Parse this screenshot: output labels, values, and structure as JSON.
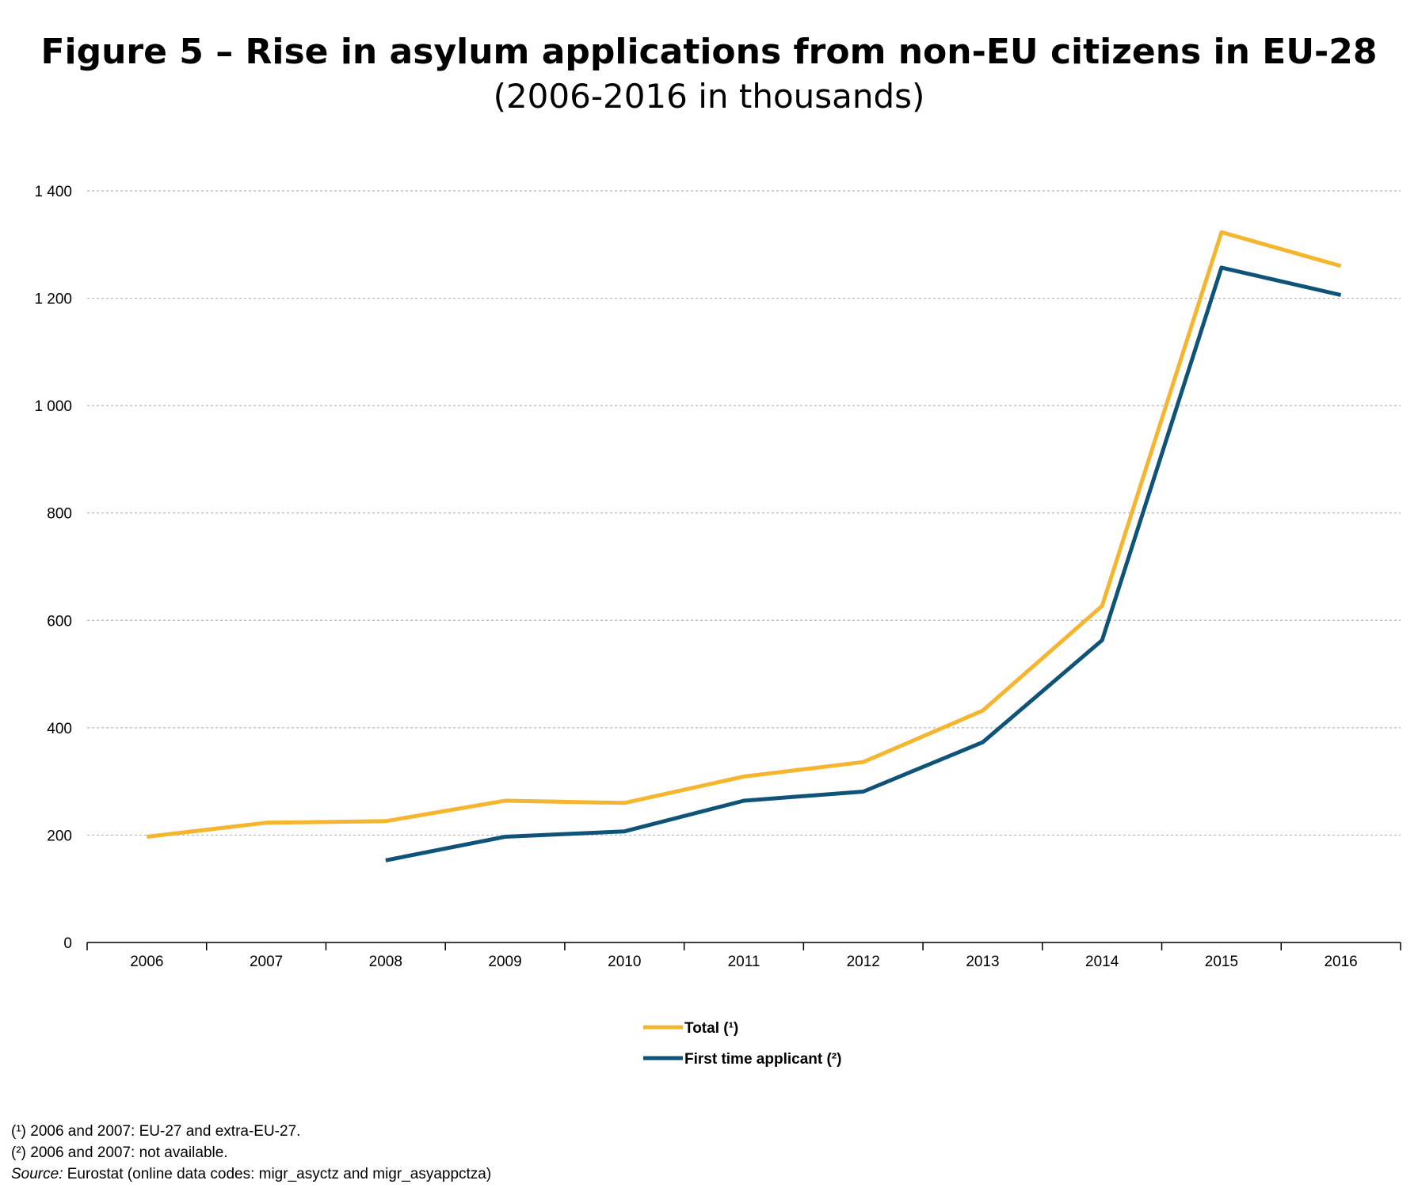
{
  "header": {
    "title": "Figure 5 – Rise in asylum applications from non-EU citizens in EU-28",
    "subtitle": "(2006-2016 in thousands)"
  },
  "chart_data": {
    "type": "line",
    "x": [
      "2006",
      "2007",
      "2008",
      "2009",
      "2010",
      "2011",
      "2012",
      "2013",
      "2014",
      "2015",
      "2016"
    ],
    "y_ticks": [
      0,
      200,
      400,
      600,
      800,
      1000,
      1200,
      1400
    ],
    "y_tick_labels": [
      "0",
      "200",
      "400",
      "600",
      "800",
      "1 000",
      "1 200",
      "1 400"
    ],
    "ylim": [
      0,
      1400
    ],
    "grid": true,
    "legend_position": "bottom-center",
    "series": [
      {
        "name": "Total (¹)",
        "color": "#F6B52E",
        "values": [
          197,
          223,
          226,
          264,
          260,
          309,
          336,
          432,
          627,
          1323,
          1260
        ]
      },
      {
        "name": "First time applicant (²)",
        "color": "#0F5478",
        "values": [
          null,
          null,
          153,
          197,
          207,
          264,
          281,
          373,
          563,
          1257,
          1206
        ]
      }
    ]
  },
  "footnotes": {
    "note1": "(¹) 2006 and 2007: EU-27 and extra-EU-27.",
    "note2": "(²) 2006 and 2007: not available.",
    "source_label": "Source:",
    "source_text": " Eurostat (online data codes: migr_asyctz and migr_asyappctza)"
  }
}
